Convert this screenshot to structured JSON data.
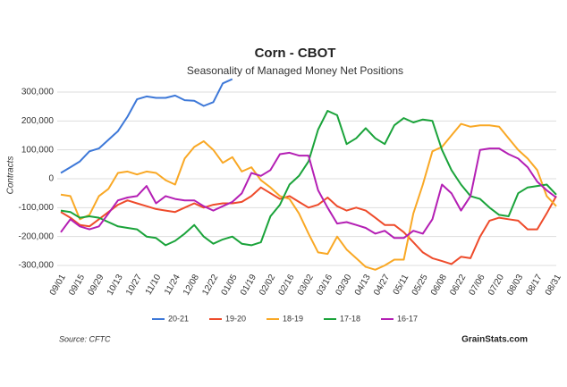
{
  "chart_data": {
    "type": "line",
    "title": "Corn - CBOT",
    "subtitle": "Seasonality of Managed Money Net Positions",
    "y_label": "Contracts",
    "source": "Source: CFTC",
    "brand": "GrainStats.com",
    "categories": [
      "09/01",
      null,
      "09/15",
      null,
      "09/29",
      null,
      "10/13",
      null,
      "10/27",
      null,
      "11/10",
      null,
      "11/24",
      null,
      "12/08",
      null,
      "12/22",
      null,
      "01/05",
      null,
      "01/19",
      null,
      "02/02",
      null,
      "02/16",
      null,
      "03/02",
      null,
      "03/16",
      null,
      "03/30",
      null,
      "04/13",
      null,
      "04/27",
      null,
      "05/11",
      null,
      "05/25",
      null,
      "06/08",
      null,
      "06/22",
      null,
      "07/06",
      null,
      "07/20",
      null,
      "08/03",
      null,
      "08/17",
      null,
      "08/31"
    ],
    "ylim": [
      -330000,
      360000
    ],
    "yticks": [
      {
        "value": -300000,
        "label": "-300,000"
      },
      {
        "value": -200000,
        "label": "-200,000"
      },
      {
        "value": -100000,
        "label": "-100,000"
      },
      0,
      {
        "value": 100000,
        "label": "100,000"
      },
      {
        "value": 200000,
        "label": "200,000"
      },
      {
        "value": 300000,
        "label": "300,000"
      }
    ],
    "grid": true,
    "legend": "bottom",
    "series": [
      {
        "name": "20-21",
        "color": "#3d78d8",
        "values": [
          20000,
          40000,
          60000,
          95000,
          105000,
          135000,
          165000,
          215000,
          275000,
          285000,
          280000,
          280000,
          288000,
          272000,
          270000,
          252000,
          265000,
          330000,
          345000,
          null,
          null,
          null,
          null,
          null,
          null,
          null,
          null,
          null,
          null,
          null,
          null,
          null,
          null,
          null,
          null,
          null,
          null,
          null,
          null,
          null,
          null,
          null,
          null,
          null,
          null,
          null,
          null,
          null,
          null,
          null,
          null,
          null,
          null
        ]
      },
      {
        "name": "19-20",
        "color": "#ee4b2b",
        "values": [
          -115000,
          -135000,
          -160000,
          -165000,
          -140000,
          -115000,
          -90000,
          -75000,
          -85000,
          -95000,
          -105000,
          -110000,
          -115000,
          -100000,
          -85000,
          -100000,
          -90000,
          -85000,
          -85000,
          -80000,
          -60000,
          -30000,
          -50000,
          -70000,
          -60000,
          -80000,
          -100000,
          -90000,
          -65000,
          -95000,
          -110000,
          -100000,
          -110000,
          -135000,
          -160000,
          -160000,
          -185000,
          -220000,
          -255000,
          -275000,
          -285000,
          -295000,
          -270000,
          -275000,
          -200000,
          -145000,
          -135000,
          -140000,
          -145000,
          -175000,
          -175000,
          -120000,
          -60000
        ]
      },
      {
        "name": "18-19",
        "color": "#f9a825",
        "values": [
          -55000,
          -60000,
          -140000,
          -125000,
          -60000,
          -35000,
          20000,
          25000,
          15000,
          25000,
          20000,
          -5000,
          -20000,
          70000,
          110000,
          130000,
          100000,
          55000,
          75000,
          25000,
          40000,
          -5000,
          -30000,
          -60000,
          -70000,
          -120000,
          -190000,
          -255000,
          -260000,
          -200000,
          -245000,
          -275000,
          -305000,
          -315000,
          -300000,
          -280000,
          -280000,
          -120000,
          -20000,
          95000,
          110000,
          150000,
          190000,
          180000,
          185000,
          185000,
          180000,
          140000,
          100000,
          70000,
          30000,
          -60000,
          -95000
        ]
      },
      {
        "name": "17-18",
        "color": "#1aa33a",
        "values": [
          -110000,
          -115000,
          -135000,
          -130000,
          -135000,
          -150000,
          -165000,
          -170000,
          -175000,
          -200000,
          -205000,
          -230000,
          -215000,
          -190000,
          -160000,
          -200000,
          -225000,
          -210000,
          -200000,
          -225000,
          -230000,
          -220000,
          -130000,
          -90000,
          -20000,
          10000,
          60000,
          170000,
          235000,
          220000,
          120000,
          140000,
          175000,
          140000,
          120000,
          185000,
          210000,
          195000,
          205000,
          200000,
          100000,
          30000,
          -20000,
          -60000,
          -70000,
          -100000,
          -125000,
          -130000,
          -50000,
          -30000,
          -25000,
          -20000,
          -55000
        ]
      },
      {
        "name": "16-17",
        "color": "#b41fb4",
        "values": [
          -185000,
          -140000,
          -165000,
          -175000,
          -165000,
          -120000,
          -75000,
          -65000,
          -60000,
          -25000,
          -85000,
          -60000,
          -70000,
          -75000,
          -75000,
          -95000,
          -110000,
          -95000,
          -80000,
          -50000,
          20000,
          10000,
          30000,
          85000,
          90000,
          80000,
          80000,
          -40000,
          -100000,
          -155000,
          -150000,
          -160000,
          -170000,
          -190000,
          -180000,
          -205000,
          -205000,
          -180000,
          -190000,
          -140000,
          -20000,
          -50000,
          -110000,
          -60000,
          100000,
          105000,
          105000,
          85000,
          70000,
          40000,
          -10000,
          -40000,
          -65000
        ]
      }
    ]
  }
}
